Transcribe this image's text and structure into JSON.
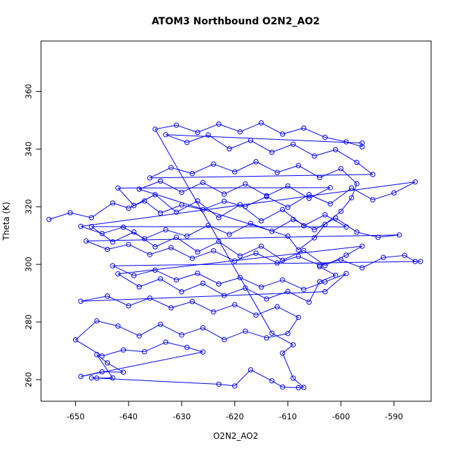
{
  "chart_data": {
    "type": "line",
    "title": "ATOM3 Northbound O2N2_AO2",
    "xlabel": "O2N2_AO2",
    "ylabel": "Theta (K)",
    "xlim": [
      -656.5,
      -583.0
    ],
    "ylim": [
      252.5,
      377.5
    ],
    "xticks": [
      -650,
      -640,
      -630,
      -620,
      -610,
      -600,
      -590
    ],
    "yticks": [
      260,
      280,
      300,
      320,
      340,
      360
    ],
    "series_color": "#0000ff",
    "markers": "open-circle",
    "grid": false,
    "legend": "none",
    "series": [
      {
        "values": [
          [
            -655,
            315.6
          ],
          [
            -651,
            317.9
          ],
          [
            -647,
            316.2
          ],
          [
            -643,
            321.3
          ],
          [
            -640,
            319.5
          ],
          [
            -637,
            322.0
          ],
          [
            -634,
            317.8
          ],
          [
            -630,
            320.6
          ],
          [
            -626,
            319.0
          ],
          [
            -622,
            321.9
          ],
          [
            -618,
            320.1
          ],
          [
            -614,
            323.5
          ],
          [
            -610,
            319.8
          ],
          [
            -606,
            324.2
          ],
          [
            -602,
            321.0
          ],
          [
            -598,
            326.5
          ],
          [
            -594,
            322.4
          ],
          [
            -590,
            324.8
          ],
          [
            -586,
            328.6
          ],
          [
            -649,
            313.2
          ],
          [
            -645,
            310.7
          ],
          [
            -641,
            312.9
          ],
          [
            -637,
            308.9
          ],
          [
            -633,
            312.0
          ],
          [
            -629,
            309.8
          ],
          [
            -625,
            313.5
          ],
          [
            -621,
            310.4
          ],
          [
            -617,
            314.2
          ],
          [
            -613,
            311.5
          ],
          [
            -609,
            315.6
          ],
          [
            -605,
            312.0
          ],
          [
            -601,
            316.1
          ],
          [
            -597,
            311.2
          ],
          [
            -593,
            309.4
          ],
          [
            -589,
            310.2
          ],
          [
            -648,
            308.1
          ],
          [
            -644,
            305.2
          ],
          [
            -640,
            306.9
          ],
          [
            -636,
            303.4
          ],
          [
            -632,
            305.8
          ],
          [
            -628,
            302.1
          ],
          [
            -624,
            304.7
          ],
          [
            -620,
            301.2
          ],
          [
            -616,
            303.9
          ],
          [
            -612,
            300.5
          ],
          [
            -608,
            302.8
          ],
          [
            -604,
            299.7
          ],
          [
            -600,
            301.6
          ],
          [
            -596,
            298.8
          ],
          [
            -592,
            302.4
          ],
          [
            -588,
            303.1
          ],
          [
            -586,
            301.0
          ],
          [
            -585,
            301.0
          ],
          [
            -643,
            299.5
          ],
          [
            -639,
            296.1
          ],
          [
            -635,
            298.0
          ],
          [
            -631,
            294.6
          ],
          [
            -627,
            296.9
          ],
          [
            -623,
            293.2
          ],
          [
            -619,
            295.4
          ],
          [
            -615,
            292.1
          ],
          [
            -611,
            294.6
          ],
          [
            -607,
            291.3
          ],
          [
            -603,
            293.9
          ],
          [
            -599,
            296.8
          ],
          [
            -603,
            290.5
          ],
          [
            -649,
            287.2
          ],
          [
            -644,
            289.0
          ],
          [
            -640,
            285.6
          ],
          [
            -636,
            288.3
          ],
          [
            -632,
            284.9
          ],
          [
            -628,
            287.1
          ],
          [
            -624,
            283.5
          ],
          [
            -620,
            286.0
          ],
          [
            -616,
            282.4
          ],
          [
            -612,
            285.3
          ],
          [
            -608,
            281.6
          ],
          [
            -610,
            276.0
          ],
          [
            -614,
            274.5
          ],
          [
            -618,
            276.8
          ],
          [
            -622,
            273.9
          ],
          [
            -626,
            278.0
          ],
          [
            -630,
            275.5
          ],
          [
            -634,
            279.2
          ],
          [
            -638,
            275.2
          ],
          [
            -642,
            278.6
          ],
          [
            -646,
            280.4
          ],
          [
            -650,
            273.8
          ],
          [
            -645,
            268.2
          ],
          [
            -641,
            270.3
          ],
          [
            -637,
            269.7
          ],
          [
            -633,
            273.0
          ],
          [
            -629,
            271.2
          ],
          [
            -626,
            269.6
          ],
          [
            -649,
            261.1
          ],
          [
            -645,
            262.7
          ],
          [
            -641,
            262.6
          ],
          [
            -644,
            265.8
          ],
          [
            -646,
            268.7
          ],
          [
            -643,
            260.6
          ],
          [
            -646,
            260.5
          ],
          [
            -647,
            260.6
          ],
          [
            -623,
            258.4
          ],
          [
            -620,
            257.8
          ],
          [
            -617,
            263.4
          ],
          [
            -613,
            259.6
          ],
          [
            -611,
            257.4
          ],
          [
            -608,
            257.2
          ],
          [
            -607,
            257.3
          ],
          [
            -609,
            260.5
          ],
          [
            -611,
            269.2
          ],
          [
            -609,
            272.1
          ],
          [
            -613,
            276.1
          ],
          [
            -635,
            346.9
          ],
          [
            -631,
            348.3
          ],
          [
            -627,
            345.8
          ],
          [
            -623,
            348.7
          ],
          [
            -619,
            346.0
          ],
          [
            -615,
            349.1
          ],
          [
            -611,
            345.2
          ],
          [
            -607,
            347.3
          ],
          [
            -603,
            344.1
          ],
          [
            -599,
            342.5
          ],
          [
            -596,
            340.8
          ],
          [
            -596,
            342.1
          ],
          [
            -633,
            345.0
          ],
          [
            -629,
            342.3
          ],
          [
            -625,
            344.9
          ],
          [
            -621,
            340.1
          ],
          [
            -617,
            343.0
          ],
          [
            -613,
            338.9
          ],
          [
            -609,
            341.7
          ],
          [
            -605,
            337.6
          ],
          [
            -601,
            339.8
          ],
          [
            -597,
            335.4
          ],
          [
            -594,
            331.2
          ],
          [
            -636,
            330.0
          ],
          [
            -632,
            333.6
          ],
          [
            -628,
            331.5
          ],
          [
            -624,
            334.8
          ],
          [
            -620,
            332.1
          ],
          [
            -616,
            335.6
          ],
          [
            -612,
            331.9
          ],
          [
            -608,
            334.3
          ],
          [
            -604,
            330.1
          ],
          [
            -600,
            333.2
          ],
          [
            -597,
            328.0
          ],
          [
            -598,
            323.1
          ],
          [
            -600,
            318.4
          ],
          [
            -603,
            313.9
          ],
          [
            -605,
            309.2
          ],
          [
            -608,
            305.0
          ],
          [
            -610,
            309.8
          ],
          [
            -638,
            326.1
          ],
          [
            -634,
            328.9
          ],
          [
            -630,
            325.0
          ],
          [
            -626,
            328.4
          ],
          [
            -622,
            324.4
          ],
          [
            -618,
            327.9
          ],
          [
            -614,
            323.8
          ],
          [
            -610,
            327.2
          ],
          [
            -606,
            322.9
          ],
          [
            -602,
            326.6
          ],
          [
            -642,
            326.5
          ],
          [
            -639,
            320.4
          ],
          [
            -635,
            324.2
          ],
          [
            -631,
            318.1
          ],
          [
            -627,
            322.0
          ],
          [
            -623,
            316.2
          ],
          [
            -619,
            320.7
          ],
          [
            -615,
            315.1
          ],
          [
            -611,
            319.0
          ],
          [
            -607,
            313.4
          ],
          [
            -603,
            317.2
          ],
          [
            -599,
            313.0
          ],
          [
            -647,
            313.1
          ],
          [
            -643,
            307.8
          ],
          [
            -639,
            311.2
          ],
          [
            -635,
            306.1
          ],
          [
            -631,
            309.4
          ],
          [
            -627,
            304.3
          ],
          [
            -623,
            307.9
          ],
          [
            -619,
            302.9
          ],
          [
            -615,
            306.3
          ],
          [
            -611,
            301.4
          ],
          [
            -607,
            304.8
          ],
          [
            -603,
            299.6
          ],
          [
            -599,
            303.2
          ],
          [
            -596,
            306.3
          ],
          [
            -642,
            296.7
          ],
          [
            -638,
            292.2
          ],
          [
            -634,
            295.0
          ],
          [
            -630,
            290.5
          ],
          [
            -626,
            293.4
          ],
          [
            -622,
            289.2
          ],
          [
            -618,
            291.8
          ],
          [
            -614,
            288.0
          ],
          [
            -610,
            290.6
          ],
          [
            -606,
            286.9
          ],
          [
            -604,
            294.0
          ],
          [
            -601,
            296.2
          ],
          [
            -604,
            299.2
          ]
        ]
      }
    ]
  }
}
